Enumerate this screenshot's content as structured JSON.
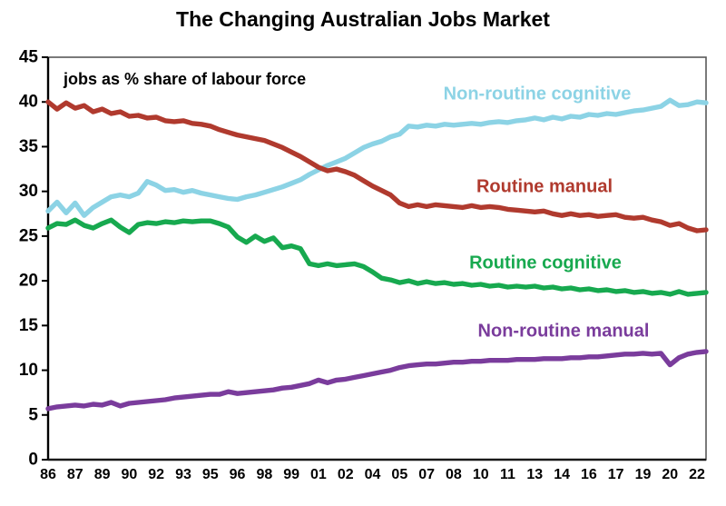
{
  "title": "The Changing Australian Jobs Market",
  "subtitle": "jobs as % share of labour force",
  "chart_data": {
    "type": "line",
    "title": "The Changing Australian Jobs Market",
    "xlabel": "",
    "ylabel": "jobs as % share of labour force",
    "ylim": [
      0,
      45
    ],
    "y_ticks": [
      0,
      5,
      10,
      15,
      20,
      25,
      30,
      35,
      40,
      45
    ],
    "x_start": 1986.0,
    "x_step": 0.5,
    "x_end": 2022.5,
    "x_tick_positions": [
      1986,
      1987.5,
      1989,
      1990.5,
      1992,
      1993.5,
      1995,
      1996.5,
      1998,
      1999.5,
      2001,
      2002.5,
      2004,
      2005.5,
      2007,
      2008.5,
      2010,
      2011.5,
      2013,
      2014.5,
      2016,
      2017.5,
      2019,
      2020.5,
      2022
    ],
    "x_tick_labels": [
      "86",
      "87",
      "89",
      "90",
      "92",
      "93",
      "95",
      "96",
      "98",
      "99",
      "01",
      "02",
      "04",
      "05",
      "07",
      "08",
      "10",
      "11",
      "13",
      "14",
      "16",
      "17",
      "19",
      "20",
      "22"
    ],
    "grid": false,
    "legend_position": "inline-annotations",
    "series": [
      {
        "name": "Non-routine cognitive",
        "color": "#8CD3E5",
        "values": [
          27.8,
          28.8,
          27.6,
          28.7,
          27.3,
          28.2,
          28.8,
          29.4,
          29.6,
          29.4,
          29.8,
          31.1,
          30.7,
          30.1,
          30.2,
          29.9,
          30.1,
          29.8,
          29.6,
          29.4,
          29.2,
          29.1,
          29.4,
          29.6,
          29.9,
          30.2,
          30.5,
          30.9,
          31.3,
          31.9,
          32.4,
          32.9,
          33.3,
          33.7,
          34.3,
          34.9,
          35.3,
          35.6,
          36.1,
          36.4,
          37.3,
          37.2,
          37.4,
          37.3,
          37.5,
          37.4,
          37.5,
          37.6,
          37.5,
          37.7,
          37.8,
          37.7,
          37.9,
          38.0,
          38.2,
          38.0,
          38.3,
          38.1,
          38.4,
          38.3,
          38.6,
          38.5,
          38.7,
          38.6,
          38.8,
          39.0,
          39.1,
          39.3,
          39.5,
          40.2,
          39.6,
          39.7,
          40.0,
          39.9
        ]
      },
      {
        "name": "Routine manual",
        "color": "#B03A2E",
        "values": [
          40.0,
          39.2,
          39.9,
          39.3,
          39.6,
          38.9,
          39.2,
          38.7,
          38.9,
          38.4,
          38.5,
          38.2,
          38.3,
          37.9,
          37.8,
          37.9,
          37.6,
          37.5,
          37.3,
          36.9,
          36.6,
          36.3,
          36.1,
          35.9,
          35.7,
          35.3,
          34.9,
          34.4,
          33.9,
          33.3,
          32.7,
          32.3,
          32.5,
          32.2,
          31.8,
          31.2,
          30.6,
          30.1,
          29.6,
          28.7,
          28.3,
          28.5,
          28.3,
          28.5,
          28.4,
          28.3,
          28.2,
          28.4,
          28.2,
          28.3,
          28.2,
          28.0,
          27.9,
          27.8,
          27.7,
          27.8,
          27.5,
          27.3,
          27.5,
          27.3,
          27.4,
          27.2,
          27.3,
          27.4,
          27.1,
          27.0,
          27.1,
          26.8,
          26.6,
          26.2,
          26.4,
          25.9,
          25.6,
          25.7
        ]
      },
      {
        "name": "Routine cognitive",
        "color": "#17A94F",
        "values": [
          25.9,
          26.4,
          26.3,
          26.8,
          26.2,
          25.9,
          26.4,
          26.8,
          26.0,
          25.4,
          26.3,
          26.5,
          26.4,
          26.6,
          26.5,
          26.7,
          26.6,
          26.7,
          26.7,
          26.4,
          26.0,
          24.9,
          24.3,
          25.0,
          24.4,
          24.8,
          23.7,
          23.9,
          23.6,
          21.9,
          21.7,
          21.9,
          21.7,
          21.8,
          21.9,
          21.6,
          21.0,
          20.3,
          20.1,
          19.8,
          20.0,
          19.7,
          19.9,
          19.7,
          19.8,
          19.6,
          19.7,
          19.5,
          19.6,
          19.4,
          19.5,
          19.3,
          19.4,
          19.3,
          19.4,
          19.2,
          19.3,
          19.1,
          19.2,
          19.0,
          19.1,
          18.9,
          19.0,
          18.8,
          18.9,
          18.7,
          18.8,
          18.6,
          18.7,
          18.5,
          18.8,
          18.5,
          18.6,
          18.7
        ]
      },
      {
        "name": "Non-routine manual",
        "color": "#7A3C9C",
        "values": [
          5.7,
          5.9,
          6.0,
          6.1,
          6.0,
          6.2,
          6.1,
          6.4,
          6.0,
          6.3,
          6.4,
          6.5,
          6.6,
          6.7,
          6.9,
          7.0,
          7.1,
          7.2,
          7.3,
          7.3,
          7.6,
          7.4,
          7.5,
          7.6,
          7.7,
          7.8,
          8.0,
          8.1,
          8.3,
          8.5,
          8.9,
          8.6,
          8.9,
          9.0,
          9.2,
          9.4,
          9.6,
          9.8,
          10.0,
          10.3,
          10.5,
          10.6,
          10.7,
          10.7,
          10.8,
          10.9,
          10.9,
          11.0,
          11.0,
          11.1,
          11.1,
          11.1,
          11.2,
          11.2,
          11.2,
          11.3,
          11.3,
          11.3,
          11.4,
          11.4,
          11.5,
          11.5,
          11.6,
          11.7,
          11.8,
          11.8,
          11.9,
          11.8,
          11.9,
          10.6,
          11.4,
          11.8,
          12.0,
          12.1
        ]
      }
    ]
  }
}
